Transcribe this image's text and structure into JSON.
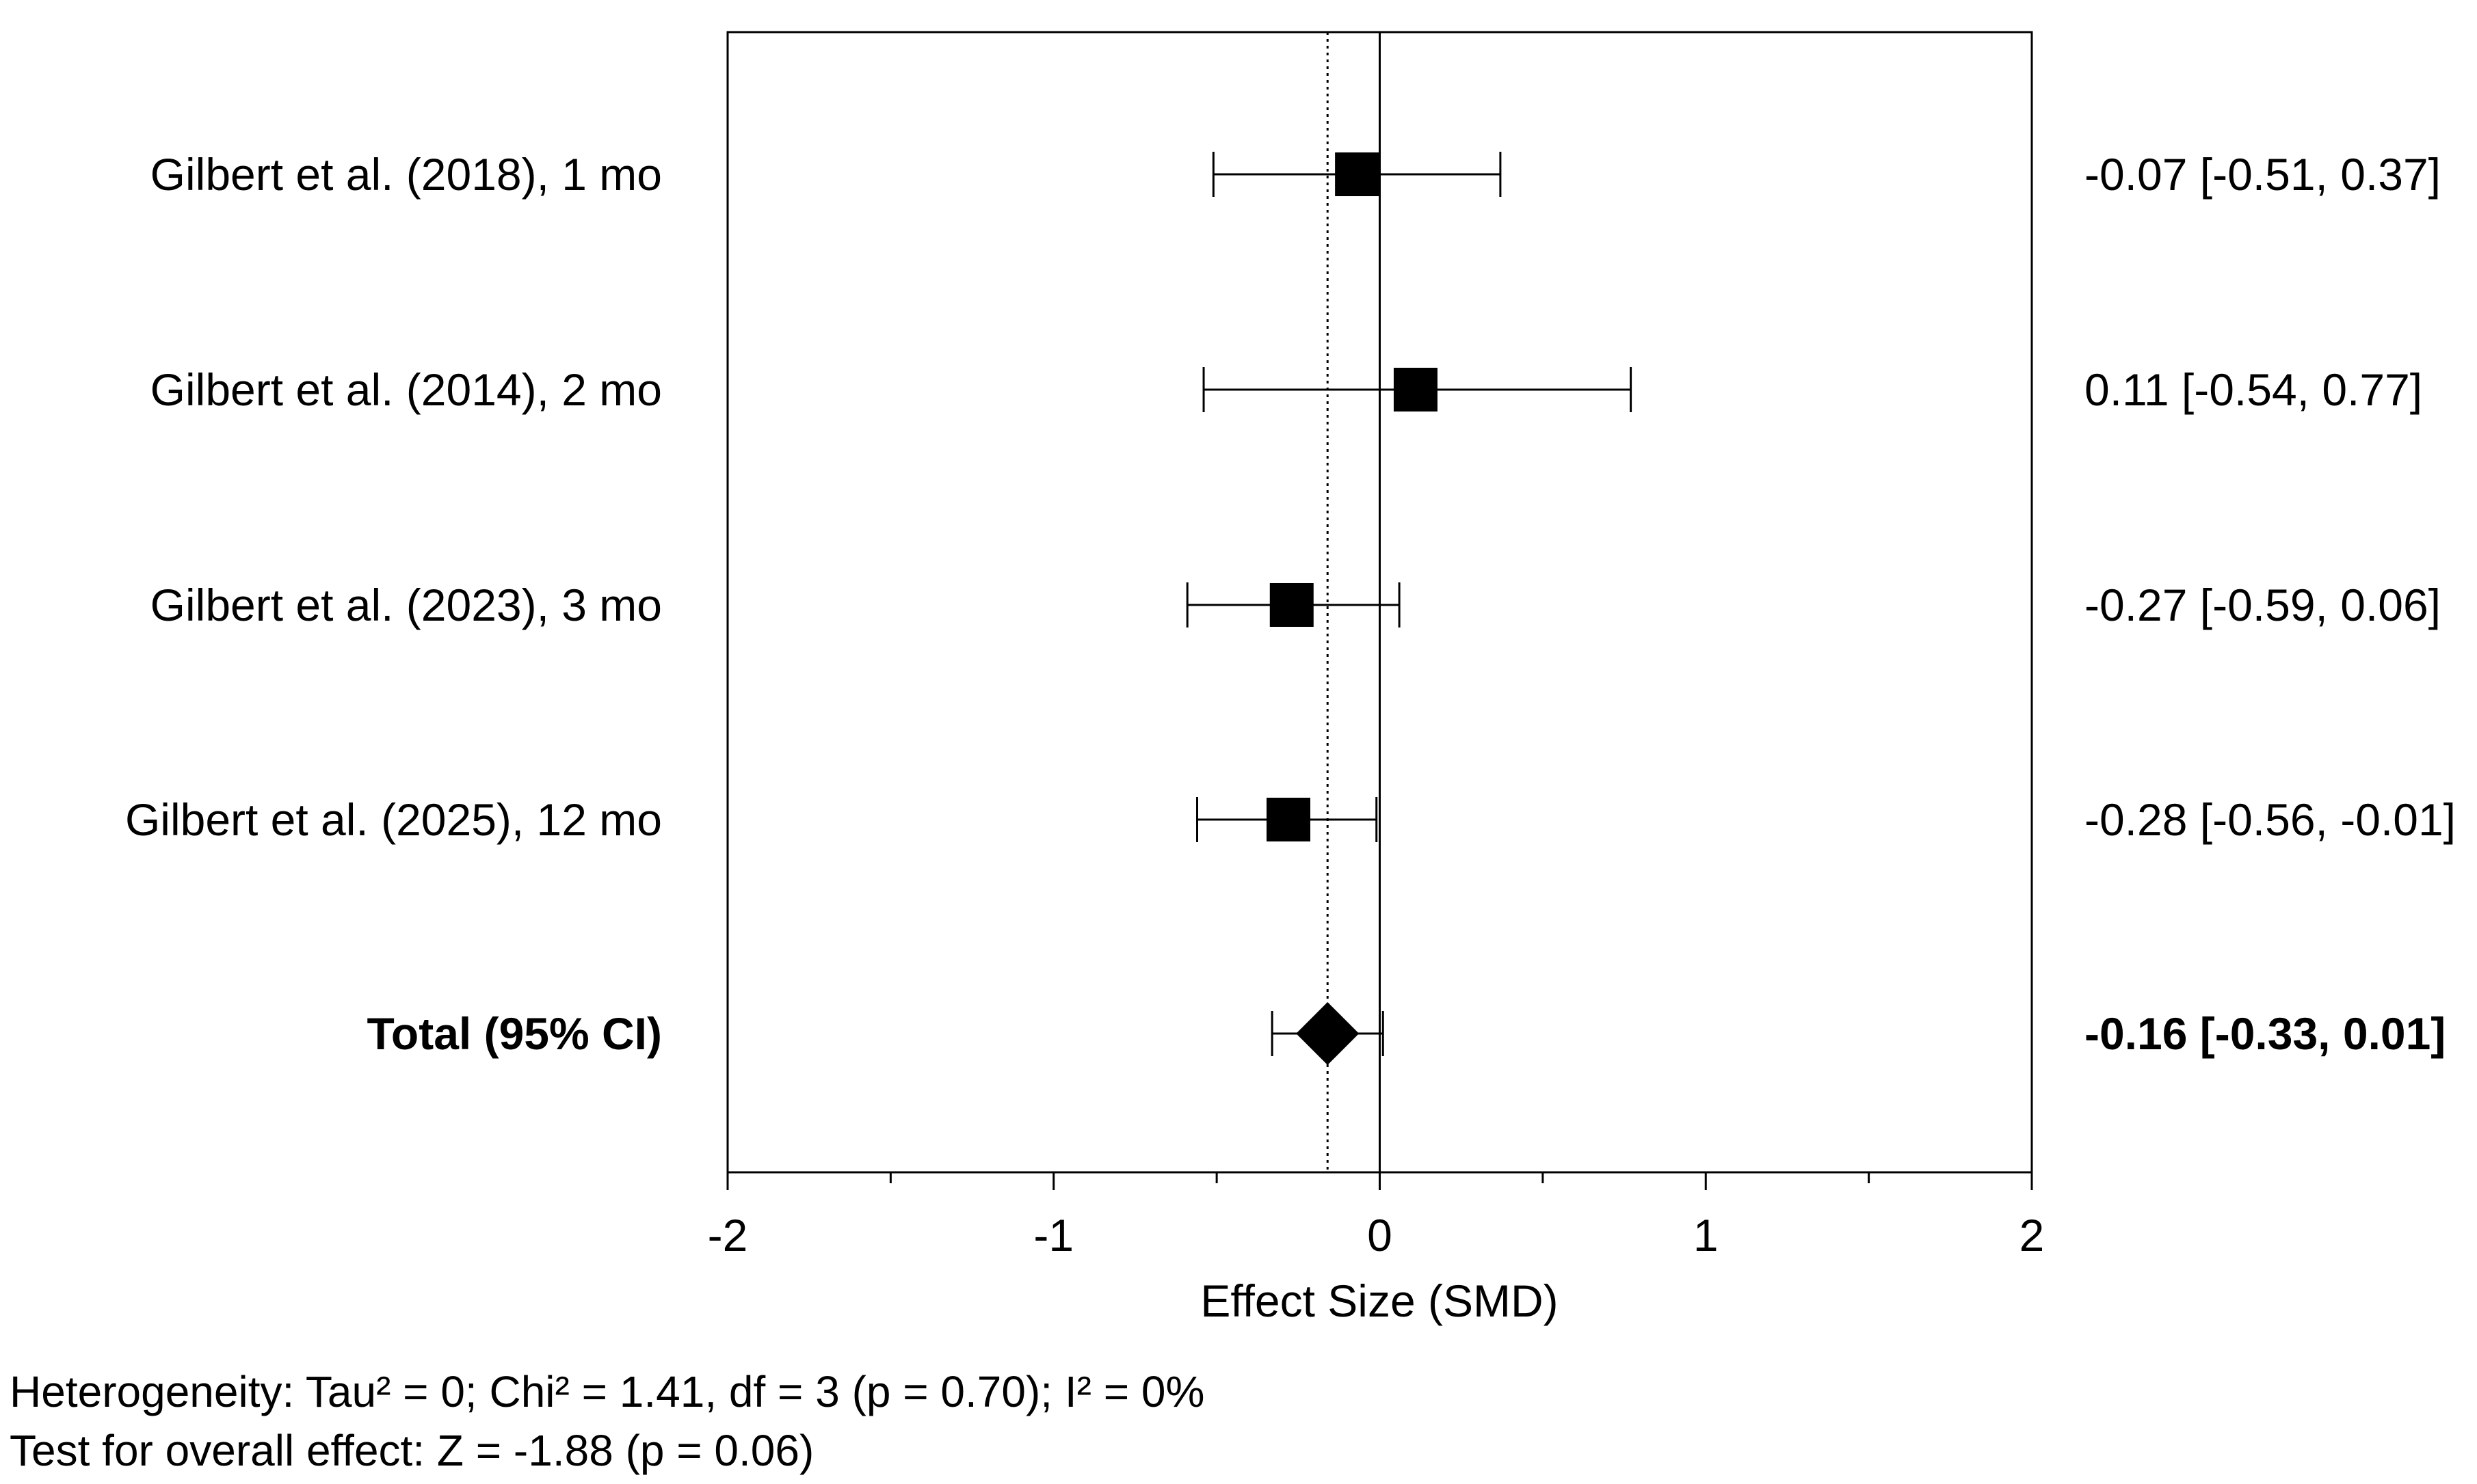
{
  "chart_data": {
    "type": "forest",
    "xlabel": "Effect Size (SMD)",
    "xlim": [
      -2,
      2
    ],
    "xticks": [
      "-2",
      "-1",
      "0",
      "1",
      "2"
    ],
    "minor_ticks": true,
    "reference_line": 0,
    "pooled_line": -0.16,
    "studies": [
      {
        "label": "Gilbert et al. (2018), 1 mo",
        "estimate": -0.07,
        "lower": -0.51,
        "upper": 0.37,
        "ci_text": "-0.07 [-0.51, 0.37]"
      },
      {
        "label": "Gilbert et al. (2014), 2 mo",
        "estimate": 0.11,
        "lower": -0.54,
        "upper": 0.77,
        "ci_text": "0.11 [-0.54, 0.77]"
      },
      {
        "label": "Gilbert et al. (2023), 3 mo",
        "estimate": -0.27,
        "lower": -0.59,
        "upper": 0.06,
        "ci_text": "-0.27 [-0.59, 0.06]"
      },
      {
        "label": "Gilbert et al. (2025), 12 mo",
        "estimate": -0.28,
        "lower": -0.56,
        "upper": -0.01,
        "ci_text": "-0.28 [-0.56, -0.01]"
      }
    ],
    "total": {
      "label": "Total (95% CI)",
      "estimate": -0.16,
      "lower": -0.33,
      "upper": 0.01,
      "ci_text": "-0.16 [-0.33, 0.01]"
    }
  },
  "footer": {
    "heterogeneity": "Heterogeneity: Tau² = 0; Chi² = 1.41, df = 3 (p = 0.70); I² = 0%",
    "overall_effect": "Test for overall effect: Z = -1.88 (p = 0.06)"
  },
  "colors": {
    "ink": "#000000",
    "background": "#ffffff"
  }
}
